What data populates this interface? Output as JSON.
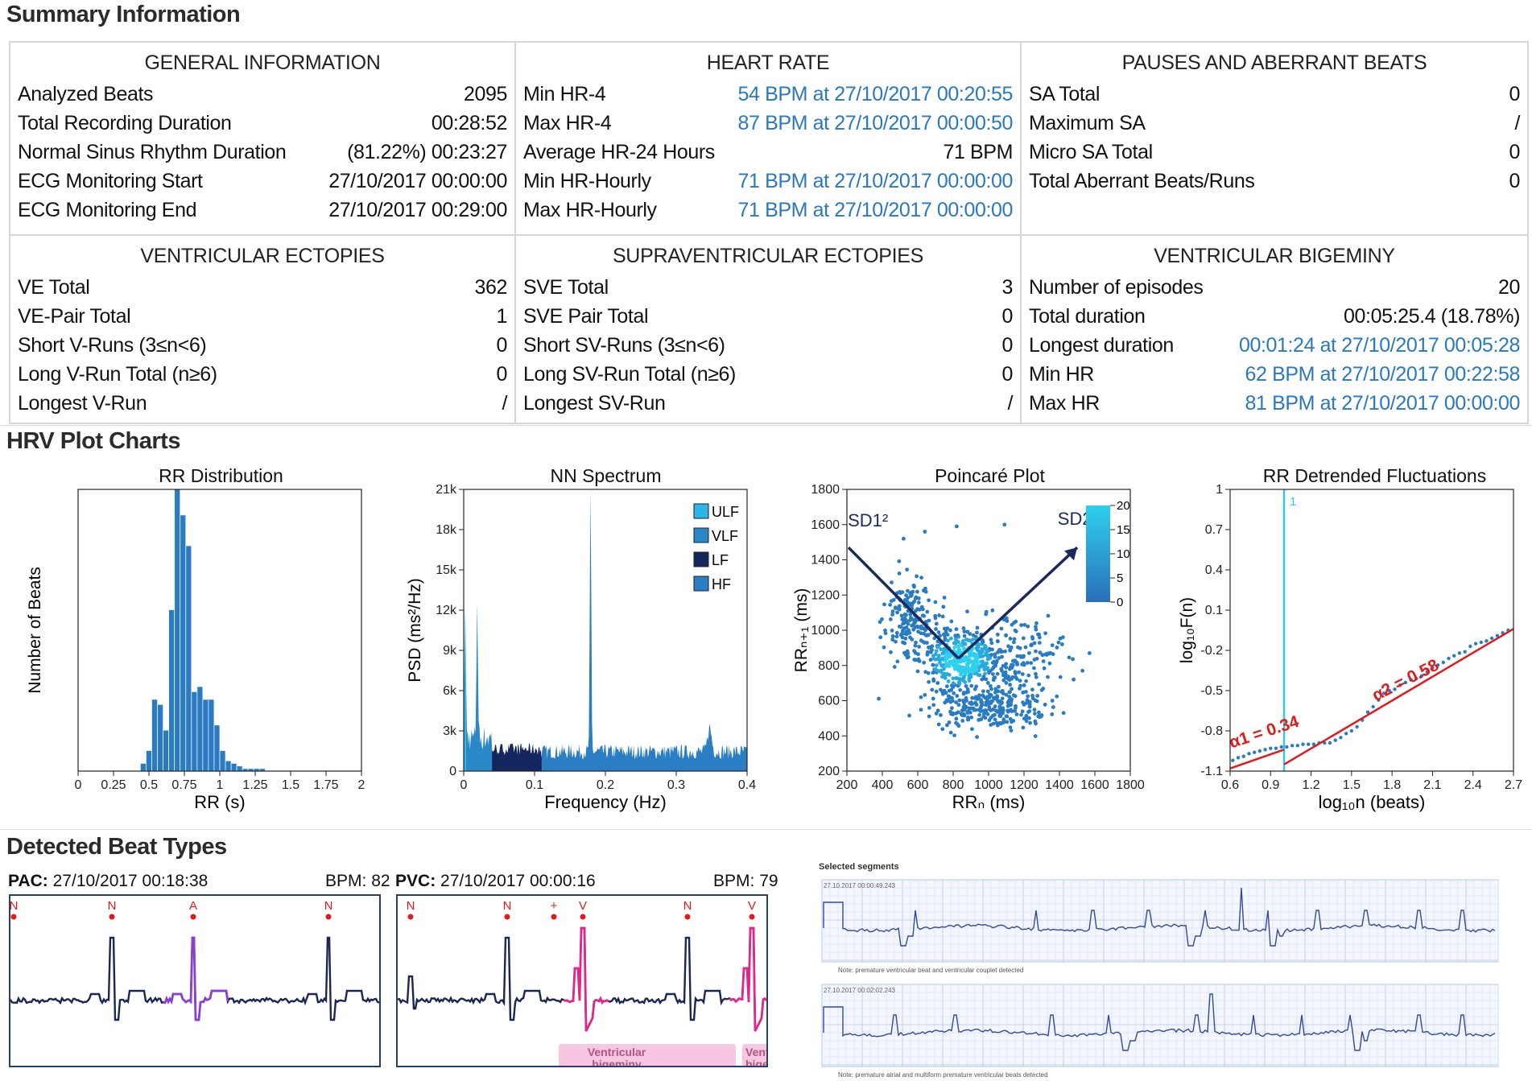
{
  "summary": {
    "title": "Summary Information",
    "general": {
      "title": "GENERAL INFORMATION",
      "rows": [
        {
          "label": "Analyzed Beats",
          "value": "2095"
        },
        {
          "label": "Total Recording Duration",
          "value": "00:28:52"
        },
        {
          "label": "Normal Sinus Rhythm Duration",
          "value": "(81.22%) 00:23:27"
        },
        {
          "label": "ECG Monitoring Start",
          "value": "27/10/2017 00:00:00"
        },
        {
          "label": "ECG Monitoring End",
          "value": "27/10/2017 00:29:00"
        }
      ]
    },
    "heart_rate": {
      "title": "HEART RATE",
      "rows": [
        {
          "label": "Min HR-4",
          "value": "54 BPM at 27/10/2017 00:20:55"
        },
        {
          "label": "Max HR-4",
          "value": "87 BPM at 27/10/2017 00:00:50"
        },
        {
          "label": "Average HR-24 Hours",
          "value": "71 BPM"
        },
        {
          "label": "Min HR-Hourly",
          "value": "71 BPM at 27/10/2017 00:00:00"
        },
        {
          "label": "Max HR-Hourly",
          "value": "71 BPM at 27/10/2017 00:00:00"
        }
      ]
    },
    "pauses": {
      "title": "PAUSES AND ABERRANT BEATS",
      "rows": [
        {
          "label": "SA Total",
          "value": "0"
        },
        {
          "label": "Maximum SA",
          "value": "/"
        },
        {
          "label": "Micro SA Total",
          "value": "0"
        },
        {
          "label": "Total Aberrant Beats/Runs",
          "value": "0"
        }
      ]
    },
    "ventricular": {
      "title": "VENTRICULAR ECTOPIES",
      "rows": [
        {
          "label": "VE Total",
          "value": "362"
        },
        {
          "label": "VE-Pair Total",
          "value": "1"
        },
        {
          "label": "Short V-Runs (3≤n<6)",
          "value": "0"
        },
        {
          "label": "Long V-Run Total (n≥6)",
          "value": "0"
        },
        {
          "label": "Longest V-Run",
          "value": "/"
        }
      ]
    },
    "supraventricular": {
      "title": "SUPRAVENTRICULAR ECTOPIES",
      "rows": [
        {
          "label": "SVE Total",
          "value": "3"
        },
        {
          "label": "SVE Pair Total",
          "value": "0"
        },
        {
          "label": "Short SV-Runs (3≤n<6)",
          "value": "0"
        },
        {
          "label": "Long SV-Run Total (n≥6)",
          "value": "0"
        },
        {
          "label": "Longest SV-Run",
          "value": "/"
        }
      ]
    },
    "bigeminy": {
      "title": "VENTRICULAR BIGEMINY",
      "rows": [
        {
          "label": "Number of episodes",
          "value": "20"
        },
        {
          "label": "Total duration",
          "value": "00:05:25.4 (18.78%)"
        },
        {
          "label": "Longest duration",
          "value": "00:01:24 at 27/10/2017 00:05:28"
        },
        {
          "label": "Min HR",
          "value": "62 BPM at 27/10/2017 00:22:58"
        },
        {
          "label": "Max HR",
          "value": "81 BPM at 27/10/2017 00:00:00"
        }
      ]
    }
  },
  "hrv": {
    "title": "HRV Plot Charts"
  },
  "chart_data": [
    {
      "type": "bar",
      "title": "RR Distribution",
      "xlabel": "RR (s)",
      "ylabel": "Number of Beats",
      "xlim": [
        0,
        2
      ],
      "xticks": [
        "0",
        "0.25",
        "0.5",
        "0.75",
        "1",
        "1.25",
        "1.5",
        "1.75",
        "2"
      ],
      "bin_width": 0.04,
      "bin_start": 0.44,
      "values": [
        3,
        8,
        28,
        26,
        16,
        63,
        110,
        100,
        88,
        31,
        33,
        28,
        28,
        18,
        8,
        4,
        3,
        2,
        1,
        1,
        1,
        1
      ],
      "ylim": [
        0,
        110
      ]
    },
    {
      "type": "area",
      "title": "NN Spectrum",
      "xlabel": "Frequency (Hz)",
      "ylabel": "PSD (ms²/Hz)",
      "xlim": [
        0,
        0.4
      ],
      "ylim": [
        0,
        21000
      ],
      "xticks": [
        "0",
        "0.1",
        "0.2",
        "0.3",
        "0.4"
      ],
      "yticks": [
        "0",
        "3k",
        "6k",
        "9k",
        "12k",
        "15k",
        "18k",
        "21k"
      ],
      "legend": [
        "ULF",
        "VLF",
        "LF",
        "HF"
      ],
      "legend_position": "top-right",
      "colors": {
        "ULF": "#2ab6e8",
        "VLF": "#2a88c8",
        "LF": "#14265e",
        "HF": "#2a7ec4"
      },
      "bands": {
        "ULF": [
          0,
          0.003
        ],
        "VLF": [
          0.003,
          0.04
        ],
        "LF": [
          0.04,
          0.11
        ],
        "HF": [
          0.11,
          0.4
        ]
      },
      "peaks": [
        {
          "x": 0.002,
          "y": 10000
        },
        {
          "x": 0.019,
          "y": 10500
        },
        {
          "x": 0.179,
          "y": 19800
        }
      ]
    },
    {
      "type": "scatter",
      "title": "Poincaré Plot",
      "xlabel": "RRₙ (ms)",
      "ylabel": "RRₙ₊₁ (ms)",
      "xlim": [
        200,
        1800
      ],
      "ylim": [
        200,
        1800
      ],
      "xticks": [
        "200",
        "400",
        "600",
        "800",
        "1000",
        "1200",
        "1400",
        "1600",
        "1800"
      ],
      "yticks": [
        "200",
        "400",
        "600",
        "800",
        "1000",
        "1200",
        "1400",
        "1600",
        "1800"
      ],
      "annotations": [
        "SD1²",
        "SD2²"
      ],
      "colorbar_ticks": [
        "20",
        "15",
        "10",
        "5",
        "0"
      ],
      "clusters": [
        {
          "cx": 850,
          "cy": 830,
          "sx": 110,
          "sy": 90,
          "n": 420
        },
        {
          "cx": 560,
          "cy": 1080,
          "sx": 70,
          "sy": 110,
          "n": 180
        },
        {
          "cx": 1000,
          "cy": 560,
          "sx": 170,
          "sy": 60,
          "n": 260
        },
        {
          "cx": 1150,
          "cy": 850,
          "sx": 120,
          "sy": 110,
          "n": 160
        }
      ],
      "outliers": [
        [
          520,
          1520
        ],
        [
          640,
          1560
        ],
        [
          1090,
          1600
        ],
        [
          820,
          1590
        ],
        [
          1530,
          770
        ],
        [
          1570,
          870
        ],
        [
          1480,
          720
        ],
        [
          1360,
          600
        ],
        [
          1420,
          960
        ]
      ]
    },
    {
      "type": "line",
      "title": "RR Detrended Fluctuations",
      "xlabel": "log₁₀n (beats)",
      "ylabel": "log₁₀F(n)",
      "xlim": [
        0.6,
        2.7
      ],
      "ylim": [
        -1.1,
        1
      ],
      "xticks": [
        "0.6",
        "0.9",
        "1.2",
        "1.5",
        "1.8",
        "2.1",
        "2.4",
        "2.7"
      ],
      "yticks": [
        "-1.1",
        "-0.8",
        "-0.5",
        "-0.2",
        "0.1",
        "0.4",
        "0.7",
        "1"
      ],
      "marker_x": 1.0,
      "marker_label": "1",
      "fits": [
        {
          "name": "α1 = 0.34",
          "x": [
            0.6,
            1.0
          ],
          "y": [
            -1.08,
            -0.94
          ]
        },
        {
          "name": "α2 = 0.58",
          "x": [
            1.0,
            2.7
          ],
          "y": [
            -1.05,
            -0.04
          ]
        }
      ],
      "points_x": [
        0.62,
        0.66,
        0.7,
        0.74,
        0.78,
        0.82,
        0.86,
        0.9,
        0.94,
        0.98,
        1.02,
        1.06,
        1.1,
        1.14,
        1.18,
        1.22,
        1.26,
        1.3,
        1.34,
        1.38,
        1.42,
        1.46,
        1.5,
        1.54,
        1.58,
        1.62,
        1.66,
        1.7,
        1.74,
        1.78,
        1.82,
        1.86,
        1.9,
        1.94,
        1.98,
        2.02,
        2.06,
        2.1,
        2.14,
        2.18,
        2.22,
        2.26,
        2.3,
        2.34,
        2.38,
        2.42,
        2.46,
        2.5,
        2.54,
        2.58,
        2.62,
        2.66
      ],
      "points_y": [
        -1.02,
        -1.0,
        -0.99,
        -0.97,
        -0.96,
        -0.95,
        -0.94,
        -0.93,
        -0.93,
        -0.92,
        -0.92,
        -0.91,
        -0.91,
        -0.9,
        -0.9,
        -0.9,
        -0.89,
        -0.89,
        -0.89,
        -0.87,
        -0.85,
        -0.82,
        -0.8,
        -0.77,
        -0.72,
        -0.66,
        -0.62,
        -0.57,
        -0.52,
        -0.5,
        -0.49,
        -0.46,
        -0.44,
        -0.42,
        -0.41,
        -0.39,
        -0.36,
        -0.33,
        -0.31,
        -0.29,
        -0.26,
        -0.24,
        -0.22,
        -0.21,
        -0.17,
        -0.15,
        -0.14,
        -0.13,
        -0.11,
        -0.09,
        -0.07,
        -0.05
      ]
    }
  ],
  "beats": {
    "title": "Detected Beat Types",
    "pac": {
      "type": "PAC",
      "time": "27/10/2017 00:18:38",
      "bpm_label": "BPM:",
      "bpm": "82",
      "markers": [
        "N",
        "N",
        "A",
        "N"
      ]
    },
    "pvc": {
      "type": "PVC",
      "time": "27/10/2017 00:00:16",
      "bpm_label": "BPM:",
      "bpm": "79",
      "markers": [
        "N",
        "N",
        "+",
        "V",
        "N",
        "V"
      ],
      "region_label_1": "Ventricular",
      "region_label_2": "bigeminy",
      "region_label_3": "Vent",
      "region_label_4": "bige"
    },
    "segments": {
      "title": "Selected segments",
      "strip1_time": "27.10.2017 00:00:49.243",
      "strip1_note": "Note: premature ventricular beat and ventricular couplet detected",
      "strip2_time": "27.10.2017 00:02:02.243",
      "strip2_note": "Note: premature atrial and multiform premature ventricular beats detected"
    }
  }
}
